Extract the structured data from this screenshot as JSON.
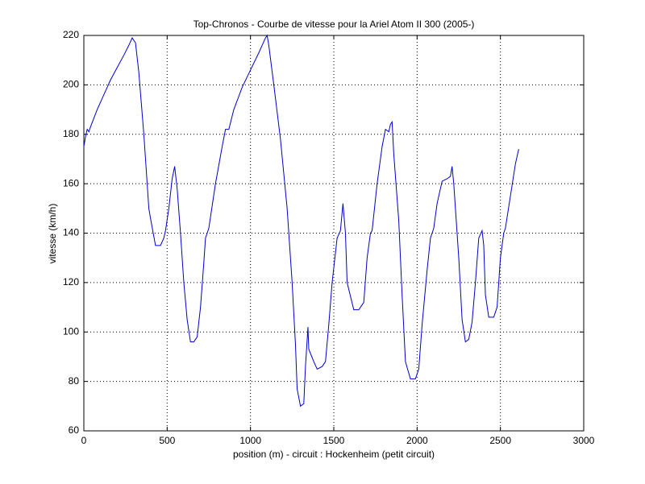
{
  "chart_data": {
    "type": "line",
    "title": "Top-Chronos - Courbe de vitesse pour la Ariel Atom II 300 (2005-)",
    "xlabel": "position (m) - circuit : Hockenheim (petit circuit)",
    "ylabel": "vitesse (km/h)",
    "x": [
      0,
      10,
      20,
      30,
      40,
      80,
      120,
      160,
      200,
      240,
      270,
      290,
      300,
      310,
      330,
      360,
      390,
      400,
      430,
      460,
      480,
      490,
      510,
      530,
      545,
      560,
      580,
      600,
      620,
      640,
      660,
      680,
      700,
      720,
      730,
      750,
      790,
      830,
      850,
      870,
      900,
      950,
      1000,
      1050,
      1090,
      1100,
      1110,
      1140,
      1180,
      1220,
      1250,
      1270,
      1280,
      1300,
      1320,
      1330,
      1345,
      1350,
      1380,
      1400,
      1430,
      1450,
      1470,
      1490,
      1520,
      1540,
      1555,
      1570,
      1580,
      1620,
      1650,
      1680,
      1700,
      1720,
      1730,
      1760,
      1790,
      1810,
      1830,
      1840,
      1850,
      1860,
      1890,
      1910,
      1930,
      1960,
      1990,
      2010,
      2030,
      2060,
      2080,
      2100,
      2120,
      2150,
      2180,
      2200,
      2210,
      2220,
      2250,
      2270,
      2290,
      2310,
      2330,
      2350,
      2370,
      2390,
      2400,
      2410,
      2430,
      2460,
      2480,
      2500,
      2520,
      2530,
      2560,
      2590,
      2610
    ],
    "series": [
      {
        "name": "vitesse",
        "color": "#0000cc",
        "values": [
          175,
          179,
          182,
          181,
          183,
          190,
          196,
          202,
          207,
          212,
          216,
          219,
          218,
          217,
          205,
          180,
          150,
          146,
          135,
          135,
          138,
          141,
          150,
          162,
          167,
          158,
          140,
          120,
          105,
          96,
          96,
          98,
          110,
          128,
          138,
          142,
          160,
          175,
          182,
          182,
          190,
          199,
          206,
          213,
          219,
          220,
          216,
          200,
          178,
          150,
          120,
          95,
          77,
          70,
          71,
          86,
          102,
          93,
          88,
          85,
          86,
          88,
          103,
          120,
          138,
          141,
          152,
          140,
          120,
          109,
          109,
          112,
          130,
          140,
          141,
          160,
          175,
          182,
          181,
          184,
          185,
          172,
          145,
          115,
          88,
          81,
          81,
          85,
          103,
          125,
          138,
          142,
          152,
          161,
          162,
          163,
          167,
          160,
          130,
          105,
          96,
          97,
          104,
          120,
          138,
          141,
          135,
          115,
          106,
          106,
          110,
          130,
          140,
          142,
          155,
          168,
          174
        ]
      }
    ],
    "xlim": [
      0,
      3000
    ],
    "xticks": [
      0,
      500,
      1000,
      1500,
      2000,
      2500,
      3000
    ],
    "ylim": [
      60,
      220
    ],
    "yticks": [
      60,
      80,
      100,
      120,
      140,
      160,
      180,
      200,
      220
    ],
    "grid": true
  }
}
